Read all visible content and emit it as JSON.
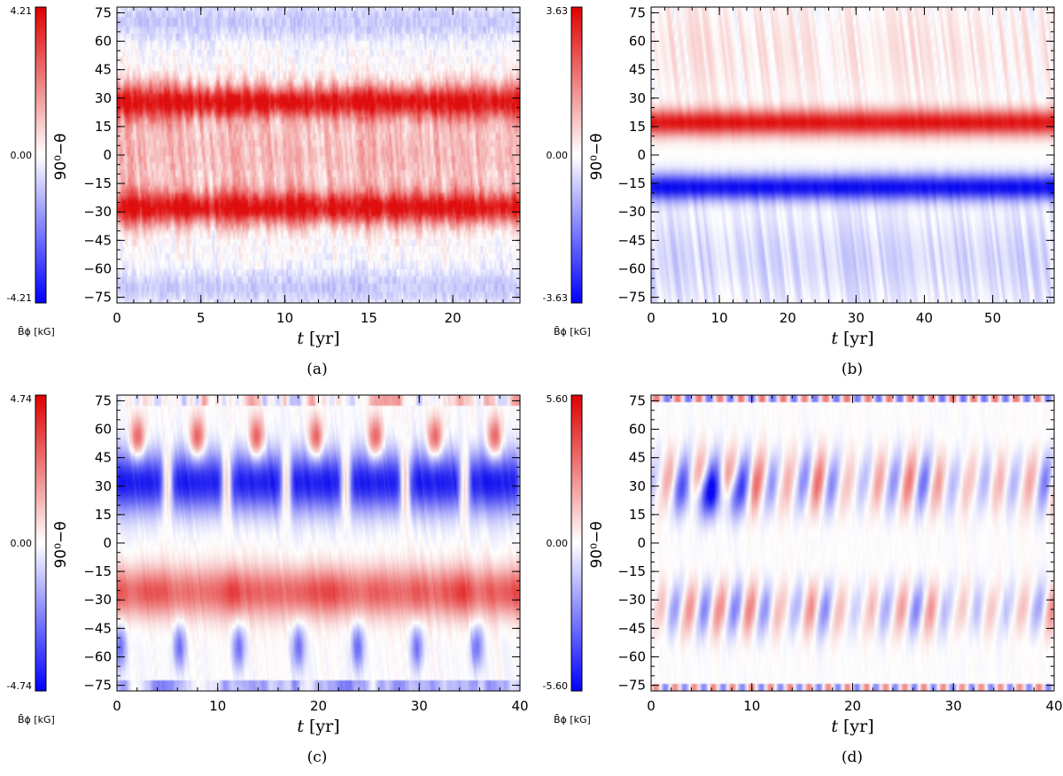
{
  "colors": {
    "positive": "#e01010",
    "zero": "#ffffff",
    "negative": "#1010f0"
  },
  "chart_data": [
    {
      "type": "heatmap",
      "panel_label": "(a)",
      "xlabel_var": "t",
      "xlabel_unit": "[yr]",
      "ylabel": "90⁰−θ",
      "colorbar_label": "B̄ϕ [kG]",
      "colorbar_max_label": "4.21",
      "colorbar_zero_label": "0.00",
      "colorbar_min_label": "-4.21",
      "zmin": -4.21,
      "zmax": 4.21,
      "xlim": [
        0,
        24
      ],
      "ylim": [
        -78,
        78
      ],
      "xticks": [
        0,
        5,
        10,
        15,
        20
      ],
      "yticks": [
        75,
        60,
        45,
        30,
        15,
        0,
        -15,
        -30,
        -45,
        -60,
        -75
      ],
      "xtick_labels": [
        "0",
        "5",
        "10",
        "15",
        "20"
      ],
      "ytick_labels": [
        "75",
        "60",
        "45",
        "30",
        "15",
        "0",
        "−15",
        "−30",
        "−45",
        "−60",
        "−75"
      ],
      "pattern": "symmetric",
      "bands": [
        {
          "center": 28,
          "width": 9,
          "amplitude": 4.0
        },
        {
          "center": -28,
          "width": 9,
          "amplitude": 4.0
        },
        {
          "center": 0,
          "width": 22,
          "amplitude": 1.2
        },
        {
          "center": 70,
          "width": 10,
          "amplitude": -0.9
        },
        {
          "center": -70,
          "width": 10,
          "amplitude": -0.9
        }
      ]
    },
    {
      "type": "heatmap",
      "panel_label": "(b)",
      "xlabel_var": "t",
      "xlabel_unit": "[yr]",
      "ylabel": "90⁰−θ",
      "colorbar_label": "B̄ϕ [kG]",
      "colorbar_max_label": "3.63",
      "colorbar_zero_label": "0.00",
      "colorbar_min_label": "-3.63",
      "zmin": -3.63,
      "zmax": 3.63,
      "xlim": [
        0,
        59
      ],
      "ylim": [
        -78,
        78
      ],
      "xticks": [
        0,
        10,
        20,
        30,
        40,
        50
      ],
      "yticks": [
        75,
        60,
        45,
        30,
        15,
        0,
        -15,
        -30,
        -45,
        -60,
        -75
      ],
      "xtick_labels": [
        "0",
        "10",
        "20",
        "30",
        "40",
        "50"
      ],
      "ytick_labels": [
        "75",
        "60",
        "45",
        "30",
        "15",
        "0",
        "−15",
        "−30",
        "−45",
        "−60",
        "−75"
      ],
      "pattern": "antisymmetric",
      "bands": [
        {
          "center": 17,
          "width": 7,
          "amplitude": 3.5
        },
        {
          "center": -17,
          "width": 7,
          "amplitude": -3.5
        },
        {
          "center": -55,
          "width": 25,
          "amplitude": -0.6
        },
        {
          "center": 55,
          "width": 25,
          "amplitude": 0.3
        }
      ]
    },
    {
      "type": "heatmap",
      "panel_label": "(c)",
      "xlabel_var": "t",
      "xlabel_unit": "[yr]",
      "ylabel": "90⁰−θ",
      "colorbar_label": "B̄ϕ [kG]",
      "colorbar_max_label": "4.74",
      "colorbar_zero_label": "0.00",
      "colorbar_min_label": "-4.74",
      "zmin": -4.74,
      "zmax": 4.74,
      "xlim": [
        0,
        40
      ],
      "ylim": [
        -78,
        78
      ],
      "xticks": [
        0,
        10,
        20,
        30,
        40
      ],
      "yticks": [
        75,
        60,
        45,
        30,
        15,
        0,
        -15,
        -30,
        -45,
        -60,
        -75
      ],
      "xtick_labels": [
        "0",
        "10",
        "20",
        "30",
        "40"
      ],
      "ytick_labels": [
        "75",
        "60",
        "45",
        "30",
        "15",
        "0",
        "−15",
        "−30",
        "−45",
        "−60",
        "−75"
      ],
      "pattern": "cyclic",
      "cycle_period_yr": 5.9,
      "bands": [
        {
          "center": 30,
          "width": 14,
          "amplitude": -4.3
        },
        {
          "center": -25,
          "width": 14,
          "amplitude": 3.6
        },
        {
          "center": 55,
          "width": 12,
          "amplitude": 3.5
        },
        {
          "center": -55,
          "width": 12,
          "amplitude": -2.8
        }
      ]
    },
    {
      "type": "heatmap",
      "panel_label": "(d)",
      "xlabel_var": "t",
      "xlabel_unit": "[yr]",
      "ylabel": "90⁰−θ",
      "colorbar_label": "B̄ϕ [kG]",
      "colorbar_max_label": "5.60",
      "colorbar_zero_label": "0.00",
      "colorbar_min_label": "-5.60",
      "zmin": -5.6,
      "zmax": 5.6,
      "xlim": [
        0,
        40
      ],
      "ylim": [
        -78,
        78
      ],
      "xticks": [
        0,
        10,
        20,
        30,
        40
      ],
      "yticks": [
        75,
        60,
        45,
        30,
        15,
        0,
        -15,
        -30,
        -45,
        -60,
        -75
      ],
      "xtick_labels": [
        "0",
        "10",
        "20",
        "30",
        "40"
      ],
      "ytick_labels": [
        "75",
        "60",
        "45",
        "30",
        "15",
        "0",
        "−15",
        "−30",
        "−45",
        "−60",
        "−75"
      ],
      "pattern": "wavy",
      "cycle_period_yr": 3.0,
      "bands": [
        {
          "center": 30,
          "width": 14,
          "amplitude": 3.0
        },
        {
          "center": -35,
          "width": 14,
          "amplitude": -2.5
        },
        {
          "center": 76,
          "width": 3,
          "amplitude": 3.5
        },
        {
          "center": -76,
          "width": 3,
          "amplitude": -3.0
        }
      ]
    }
  ]
}
